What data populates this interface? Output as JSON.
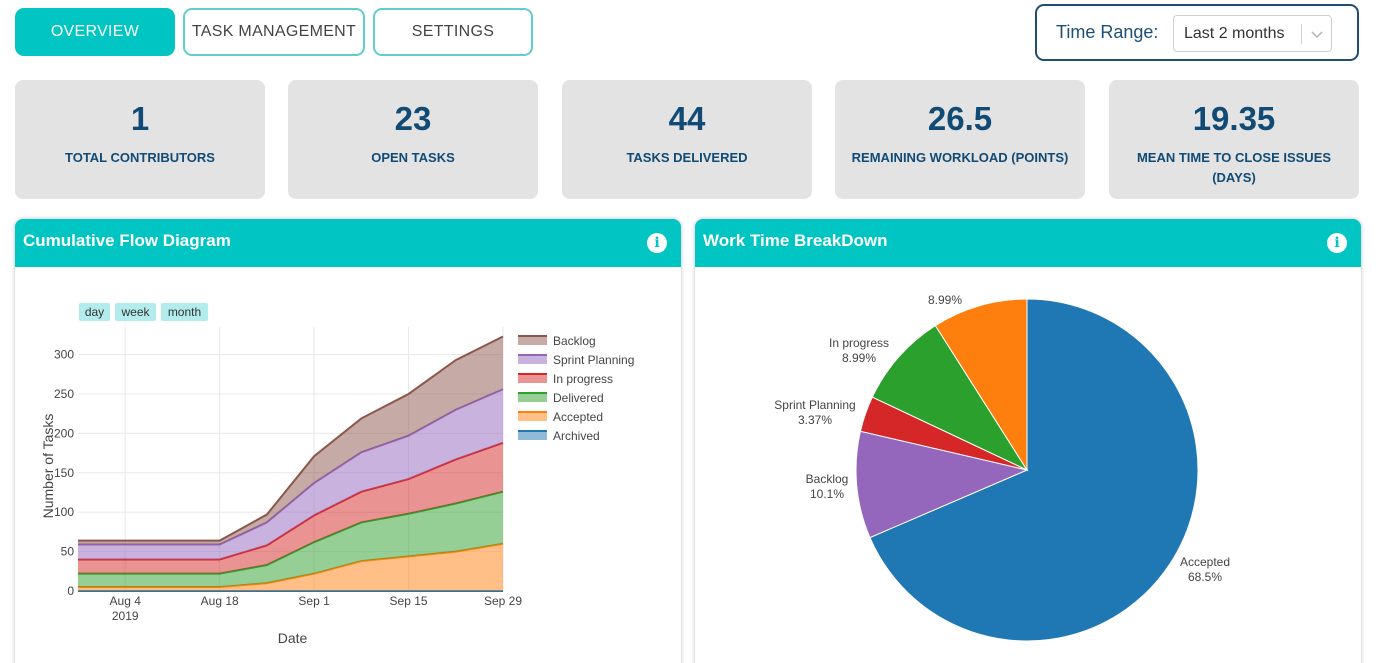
{
  "nav": {
    "tabs": [
      {
        "label": "OVERVIEW",
        "active": true
      },
      {
        "label": "TASK MANAGEMENT",
        "active": false
      },
      {
        "label": "SETTINGS",
        "active": false
      }
    ]
  },
  "time_range": {
    "label": "Time Range:",
    "value": "Last 2 months"
  },
  "stats": [
    {
      "value": "1",
      "label": "TOTAL CONTRIBUTORS"
    },
    {
      "value": "23",
      "label": "OPEN TASKS"
    },
    {
      "value": "44",
      "label": "TASKS DELIVERED"
    },
    {
      "value": "26.5",
      "label": "REMAINING WORKLOAD (POINTS)"
    },
    {
      "value": "19.35",
      "label": "MEAN TIME TO CLOSE ISSUES (DAYS)"
    }
  ],
  "panels": {
    "cfd": {
      "title": "Cumulative Flow Diagram"
    },
    "pie": {
      "title": "Work Time BreakDown"
    }
  },
  "colors": {
    "accent": "#00c5c3",
    "navy": "#114a74",
    "card_bg": "#e3e3e3"
  },
  "chart_data": [
    {
      "type": "area",
      "title": "Cumulative Flow Diagram",
      "xlabel": "Date",
      "ylabel": "Number of Tasks",
      "ylim": [
        0,
        335
      ],
      "yticks": [
        0,
        50,
        100,
        150,
        200,
        250,
        300
      ],
      "range_buttons": [
        "day",
        "week",
        "month"
      ],
      "x": [
        "2019-07-28",
        "2019-08-04",
        "2019-08-11",
        "2019-08-18",
        "2019-08-25",
        "2019-09-01",
        "2019-09-08",
        "2019-09-15",
        "2019-09-22",
        "2019-09-29"
      ],
      "xtick_labels": [
        {
          "date": "2019-08-04",
          "label": "Aug 4",
          "sublabel": "2019"
        },
        {
          "date": "2019-08-18",
          "label": "Aug 18",
          "sublabel": ""
        },
        {
          "date": "2019-09-01",
          "label": "Sep 1",
          "sublabel": ""
        },
        {
          "date": "2019-09-15",
          "label": "Sep 15",
          "sublabel": ""
        },
        {
          "date": "2019-09-29",
          "label": "Sep 29",
          "sublabel": ""
        }
      ],
      "series": [
        {
          "name": "Archived",
          "color": "#1f77b4",
          "values": [
            0,
            0,
            0,
            0,
            0,
            0,
            0,
            0,
            0,
            0
          ]
        },
        {
          "name": "Accepted",
          "color": "#ff7f0e",
          "values": [
            5,
            5,
            5,
            5,
            10,
            22,
            38,
            44,
            50,
            60
          ]
        },
        {
          "name": "Delivered",
          "color": "#2ca02c",
          "values": [
            22,
            22,
            22,
            22,
            33,
            62,
            87,
            98,
            111,
            126
          ]
        },
        {
          "name": "In progress",
          "color": "#d62728",
          "values": [
            40,
            40,
            40,
            40,
            58,
            96,
            126,
            142,
            167,
            188
          ]
        },
        {
          "name": "Sprint Planning",
          "color": "#9467bd",
          "values": [
            59,
            59,
            59,
            59,
            87,
            137,
            176,
            197,
            230,
            256
          ]
        },
        {
          "name": "Backlog",
          "color": "#8c564b",
          "values": [
            64,
            64,
            64,
            64,
            97,
            171,
            219,
            250,
            293,
            323
          ]
        }
      ],
      "legend_order": [
        "Backlog",
        "Sprint Planning",
        "In progress",
        "Delivered",
        "Accepted",
        "Archived"
      ],
      "legend_position": "right"
    },
    {
      "type": "pie",
      "title": "Work Time BreakDown",
      "slices": [
        {
          "label": "Accepted",
          "value": 68.5,
          "pct_label": "68.5%",
          "color": "#1f77b4"
        },
        {
          "label": "Backlog",
          "value": 10.1,
          "pct_label": "10.1%",
          "color": "#9467bd"
        },
        {
          "label": "Sprint Planning",
          "value": 3.37,
          "pct_label": "3.37%",
          "color": "#d62728"
        },
        {
          "label": "In progress",
          "value": 8.99,
          "pct_label": "8.99%",
          "color": "#2ca02c"
        },
        {
          "label": "",
          "value": 8.99,
          "pct_label": "8.99%",
          "color": "#ff7f0e"
        }
      ]
    }
  ]
}
